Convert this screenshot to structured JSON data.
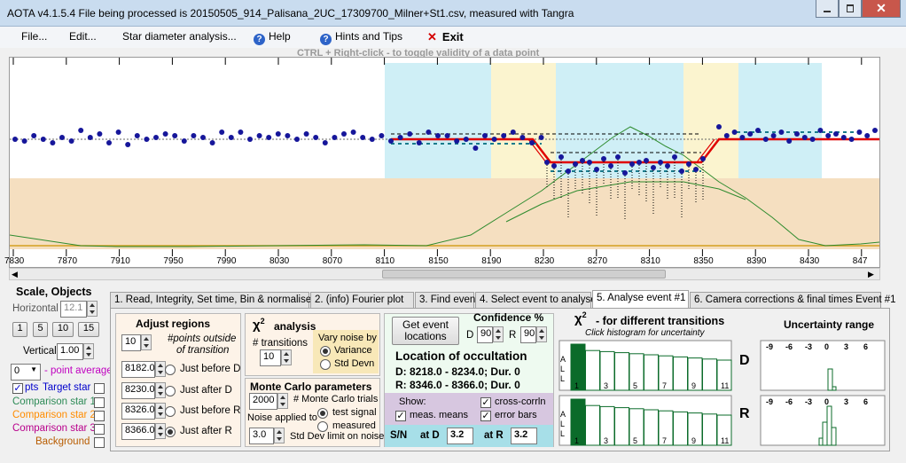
{
  "window": {
    "title": "AOTA v4.1.5.4    File being processed is  20150505_914_Palisana_2UC_17309700_Milner+St1.csv,  measured with Tangra"
  },
  "menu": {
    "file": "File...",
    "edit": "Edit...",
    "star_diameter": "Star diameter analysis...",
    "help": "Help",
    "hints": "Hints and Tips",
    "exit": "Exit"
  },
  "hint_text": "CTRL + Right-click   -   to toggle validity of a data point",
  "plot": {
    "x_ticks": [
      "7830",
      "7870",
      "7910",
      "7950",
      "7990",
      "8030",
      "8070",
      "8110",
      "8150",
      "8190",
      "8230",
      "8270",
      "8310",
      "8350",
      "8390",
      "8430",
      "847"
    ]
  },
  "scale_panel": {
    "title": "Scale,  Objects",
    "horizontal_label": "Horizontal",
    "horizontal_value": "12.1",
    "zoom_buttons": [
      "1",
      "5",
      "10",
      "15"
    ],
    "vertical_label": "Vertical",
    "vertical_value": "1.00",
    "point_average_value": "0",
    "point_average_label": "- point average",
    "pts_label": "pts",
    "target_star": "Target star",
    "comparison1": "Comparison star 1",
    "comparison2": "Comparison star 2",
    "comparison3": "Comparison star 3",
    "background": "Background",
    "colors": {
      "target": "#0000cc",
      "comp1": "#2e8b57",
      "comp2": "#ff8c00",
      "comp3": "#b8008b",
      "background": "#b85c00"
    }
  },
  "tabs": [
    "1.  Read, Integrity, Set time, Bin & normalise",
    "2. (info)  Fourier plot",
    "3. Find events",
    "4. Select event to analyse",
    "5. Analyse event #1",
    "6. Camera corrections & final times Event #1"
  ],
  "adjust_regions": {
    "title": "Adjust regions",
    "points_value": "10",
    "points_label_1": "#points outside",
    "points_label_2": "of transition",
    "rows": [
      {
        "value": "8182.0",
        "label": "Just before D"
      },
      {
        "value": "8230.0",
        "label": "Just after D"
      },
      {
        "value": "8326.0",
        "label": "Just before R"
      },
      {
        "value": "8366.0",
        "label": "Just after R"
      }
    ]
  },
  "chi2_analysis": {
    "title": "analysis",
    "transitions_label": "# transitions",
    "transitions_value": "10",
    "vary_noise_title": "Vary noise by",
    "variance": "Variance",
    "std_devn": "Std Devn"
  },
  "monte_carlo": {
    "title": "Monte Carlo parameters",
    "trials_value": "2000",
    "trials_label": "# Monte Carlo trials",
    "noise_applied": "Noise applied to",
    "test_signal": "test signal",
    "measured": "measured",
    "std_limit_value": "3.0",
    "std_limit_label": "Std Dev limit on noise"
  },
  "event_locations": {
    "button": "Get event locations",
    "confidence_title": "Confidence %",
    "d_label": "D",
    "d_value": "90",
    "r_label": "R",
    "r_value": "90",
    "location_title": "Location of occultation",
    "d_line": "D: 8218.0 - 8234.0; Dur. 0",
    "r_line": "R: 8346.0 - 8366.0; Dur. 0",
    "show_label": "Show:",
    "meas_means": "meas. means",
    "cross_corrln": "cross-corrln",
    "error_bars": "error bars",
    "sn_label": "S/N",
    "at_d": "at D",
    "sn_d": "3.2",
    "at_r": "at R",
    "sn_r": "3.2"
  },
  "chi2_transitions": {
    "title": "- for different transitions",
    "subtitle": "Click histogram for uncertainty",
    "all_letters": [
      "A",
      "L",
      "L"
    ],
    "x_labels": [
      "1",
      "3",
      "5",
      "7",
      "9",
      "11"
    ],
    "d_label": "D",
    "r_label": "R"
  },
  "uncertainty": {
    "title": "Uncertainty range",
    "x_labels": [
      "-9",
      "-6",
      "-3",
      "0",
      "3",
      "6"
    ]
  }
}
